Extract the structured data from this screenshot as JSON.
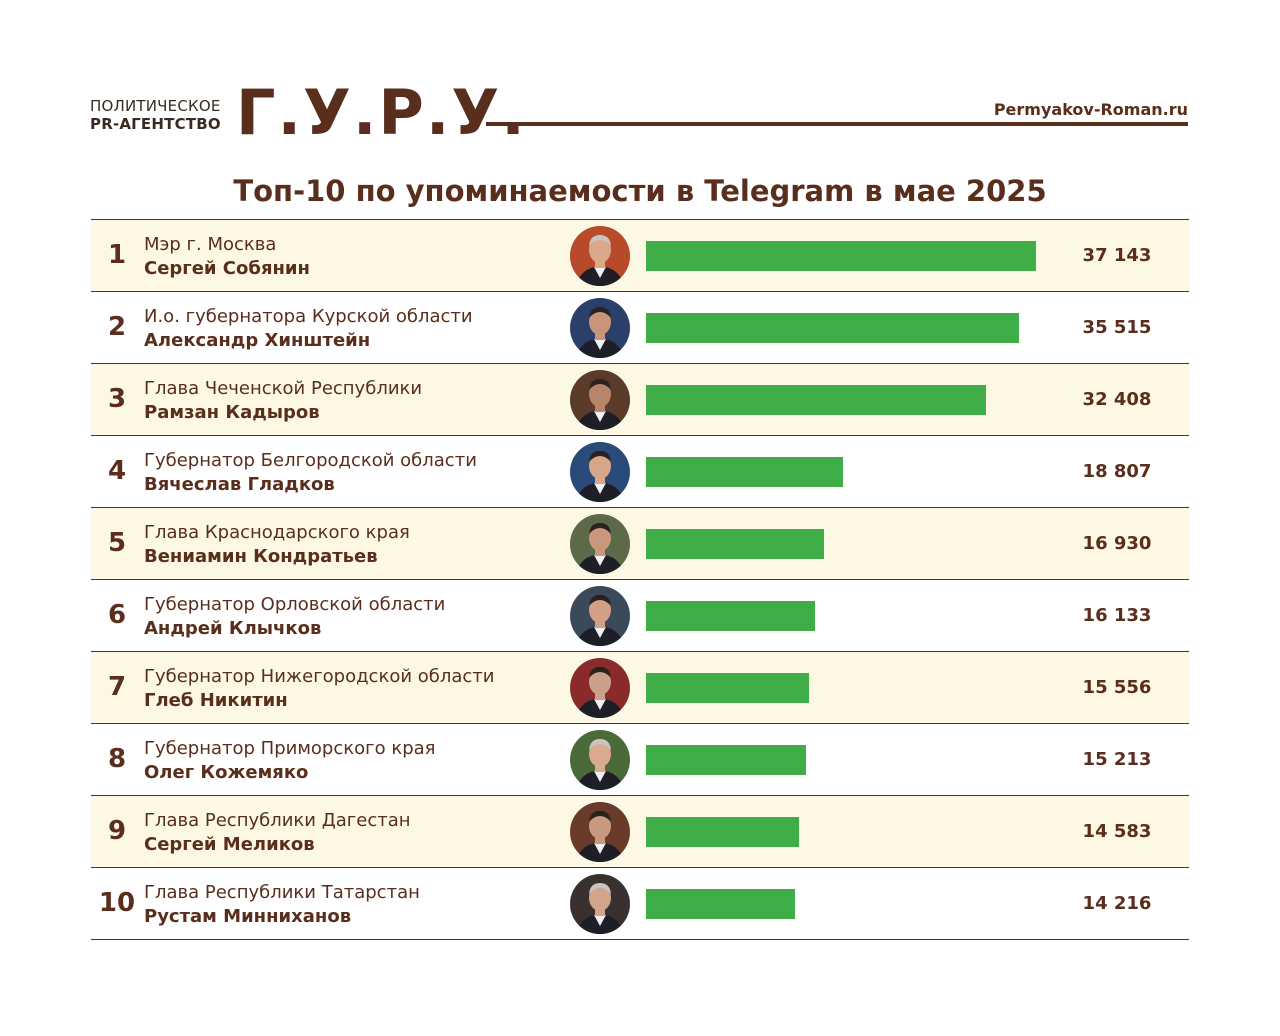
{
  "header": {
    "agency_line1": "ПОЛИТИЧЕСКОЕ",
    "agency_line2": "PR-АГЕНТСТВО",
    "logo": "Г.У.Р.У.",
    "site": "Permyakov-Roman.ru"
  },
  "colors": {
    "brand": "#5a2e1c",
    "bar": "#3fae49",
    "row_highlight": "#fdf8e4"
  },
  "chart_data": {
    "type": "bar",
    "title": "Топ-10 по упоминаемости в Telegram в мае 2025",
    "xlabel": "",
    "ylabel": "",
    "orientation": "horizontal",
    "xlim": [
      0,
      40000
    ],
    "rows": [
      {
        "rank": "1",
        "role": "Мэр г. Москва",
        "name": "Сергей Собянин",
        "value": 37143,
        "value_label": "37 143"
      },
      {
        "rank": "2",
        "role": "И.о. губернатора Курской области",
        "name": "Александр Хинштейн",
        "value": 35515,
        "value_label": "35 515"
      },
      {
        "rank": "3",
        "role": "Глава Чеченской Республики",
        "name": "Рамзан Кадыров",
        "value": 32408,
        "value_label": "32 408"
      },
      {
        "rank": "4",
        "role": "Губернатор Белгородской области",
        "name": "Вячеслав Гладков",
        "value": 18807,
        "value_label": "18 807"
      },
      {
        "rank": "5",
        "role": "Глава Краснодарского края",
        "name": "Вениамин Кондратьев",
        "value": 16930,
        "value_label": "16 930"
      },
      {
        "rank": "6",
        "role": "Губернатор Орловской области",
        "name": "Андрей Клычков",
        "value": 16133,
        "value_label": "16 133"
      },
      {
        "rank": "7",
        "role": "Губернатор Нижегородской области",
        "name": "Глеб Никитин",
        "value": 15556,
        "value_label": "15 556"
      },
      {
        "rank": "8",
        "role": "Губернатор Приморского края",
        "name": "Олег Кожемяко",
        "value": 15213,
        "value_label": "15 213"
      },
      {
        "rank": "9",
        "role": "Глава Республики Дагестан",
        "name": "Сергей Меликов",
        "value": 14583,
        "value_label": "14 583"
      },
      {
        "rank": "10",
        "role": "Глава Республики Татарстан",
        "name": "Рустам Минниханов",
        "value": 14216,
        "value_label": "14 216"
      }
    ]
  }
}
